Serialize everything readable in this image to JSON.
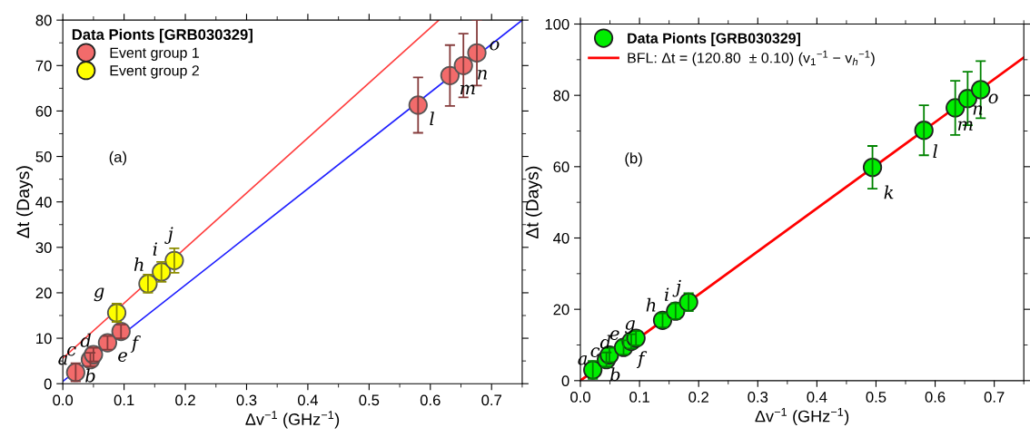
{
  "chart_data": [
    {
      "type": "scatter",
      "xlabel": "Δv$^{−1}$ (GHz$^{−1}$)",
      "ylabel": "Δt (Days)",
      "legend_title": "Data Pionts [GRB030329]",
      "legend": "top left",
      "grid": false,
      "xlim": [
        0,
        0.75
      ],
      "ylim": [
        0,
        80
      ],
      "xticks": [
        {
          "value": 0,
          "label": "0.0"
        },
        0.1,
        0.2,
        0.3,
        0.4,
        0.5,
        0.6,
        0.7
      ],
      "yticks": [
        0,
        10,
        20,
        30,
        40,
        50,
        60,
        70,
        80
      ],
      "series": [
        {
          "type": "line",
          "marker": "none",
          "color": "#ff4040",
          "x": [
            0,
            0.614
          ],
          "values": [
            5.6,
            80
          ]
        },
        {
          "type": "line",
          "marker": "none",
          "color": "#1f1fff",
          "x": [
            0,
            0.75
          ],
          "values": [
            0.5,
            80
          ]
        },
        {
          "name": "Event group 1",
          "marker": "circle",
          "color": "#f26b6b",
          "x": [
            0.021,
            0.045,
            0.05,
            0.073,
            0.095,
            0.58,
            0.632,
            0.654,
            0.676
          ],
          "values": [
            2.5,
            5.3,
            6.4,
            9.0,
            11.5,
            61.3,
            67.8,
            70.0,
            72.8
          ],
          "errors": [
            2,
            1.5,
            1.5,
            1.5,
            1.5,
            6.1,
            6.7,
            7.0,
            7.2
          ]
        },
        {
          "name": "Event group 2",
          "marker": "circle",
          "color": "#ffff00",
          "x": [
            0.088,
            0.139,
            0.161,
            0.182
          ],
          "values": [
            15.6,
            22.0,
            24.6,
            27.1
          ],
          "errors": [
            2,
            2,
            2.2,
            2.7
          ]
        }
      ],
      "annotations": [
        "(a)",
        {
          "text": "a",
          "x": 0.021,
          "y": 2.5
        },
        {
          "text": "b",
          "x": 0.045,
          "y": 5.3
        },
        {
          "text": "c",
          "x": 0.045,
          "y": 5.3
        },
        {
          "text": "d",
          "x": 0.05,
          "y": 6.4
        },
        {
          "text": "e",
          "x": 0.073,
          "y": 9.0
        },
        {
          "text": "f",
          "x": 0.095,
          "y": 11.5
        },
        {
          "text": "g",
          "x": 0.088,
          "y": 15.6
        },
        {
          "text": "h",
          "x": 0.139,
          "y": 22.0
        },
        {
          "text": "i",
          "x": 0.161,
          "y": 24.6
        },
        {
          "text": "j",
          "x": 0.182,
          "y": 27.1
        },
        {
          "text": "l",
          "x": 0.58,
          "y": 61.3
        },
        {
          "text": "m",
          "x": 0.632,
          "y": 67.8
        },
        {
          "text": "n",
          "x": 0.654,
          "y": 70.0
        },
        {
          "text": "o",
          "x": 0.676,
          "y": 72.8
        }
      ]
    },
    {
      "type": "scatter",
      "xlabel": "Δv$^{−1}$ (GHz$^{−1}$)",
      "ylabel": "Δt (Days)",
      "legend": "top left",
      "grid": false,
      "xlim": [
        0,
        0.75
      ],
      "ylim": [
        0,
        100
      ],
      "xticks": [
        {
          "value": 0,
          "label": "0.0"
        },
        0.1,
        0.2,
        0.3,
        0.4,
        0.5,
        0.6,
        0.7
      ],
      "yticks": [
        0,
        20,
        40,
        60,
        80,
        100
      ],
      "series": [
        {
          "name": "Data Pionts [GRB030329]",
          "marker": "circle",
          "color": "#00ee00",
          "x": [
            0.021,
            0.044,
            0.049,
            0.073,
            0.086,
            0.094,
            0.139,
            0.161,
            0.183,
            0.494,
            0.581,
            0.634,
            0.655,
            0.677
          ],
          "values": [
            3.0,
            5.9,
            7.2,
            9.3,
            11.0,
            11.9,
            16.9,
            19.5,
            22.0,
            59.8,
            70.2,
            76.5,
            79.1,
            81.6
          ],
          "errors": [
            2.5,
            2,
            2,
            2,
            2,
            2,
            2,
            2.2,
            2.5,
            6,
            7,
            7.6,
            7.5,
            8
          ]
        },
        {
          "type": "line",
          "marker": "none",
          "name": "BFL: Δt = (120.80  ± 0.10) (v$_{1}$$^{−1}$ − v$_{h}$$^{−1}$)",
          "color": "#ff0000",
          "x": [
            0,
            0.75
          ],
          "values": [
            0,
            90.6
          ]
        }
      ],
      "annotations": [
        "(b)",
        {
          "text": "a",
          "x": 0.021,
          "y": 3.0
        },
        {
          "text": "b",
          "x": 0.044,
          "y": 5.9
        },
        {
          "text": "c",
          "x": 0.044,
          "y": 5.9
        },
        {
          "text": "d",
          "x": 0.049,
          "y": 7.2
        },
        {
          "text": "e",
          "x": 0.073,
          "y": 9.3
        },
        {
          "text": "f",
          "x": 0.094,
          "y": 11.9
        },
        {
          "text": "g",
          "x": 0.086,
          "y": 11.0
        },
        {
          "text": "h",
          "x": 0.139,
          "y": 16.9
        },
        {
          "text": "i",
          "x": 0.161,
          "y": 19.5
        },
        {
          "text": "j",
          "x": 0.183,
          "y": 22.0
        },
        {
          "text": "k",
          "x": 0.494,
          "y": 59.8
        },
        {
          "text": "l",
          "x": 0.581,
          "y": 70.2
        },
        {
          "text": "m",
          "x": 0.634,
          "y": 76.5
        },
        {
          "text": "n",
          "x": 0.655,
          "y": 79.1
        },
        {
          "text": "o",
          "x": 0.677,
          "y": 81.6
        }
      ]
    }
  ]
}
